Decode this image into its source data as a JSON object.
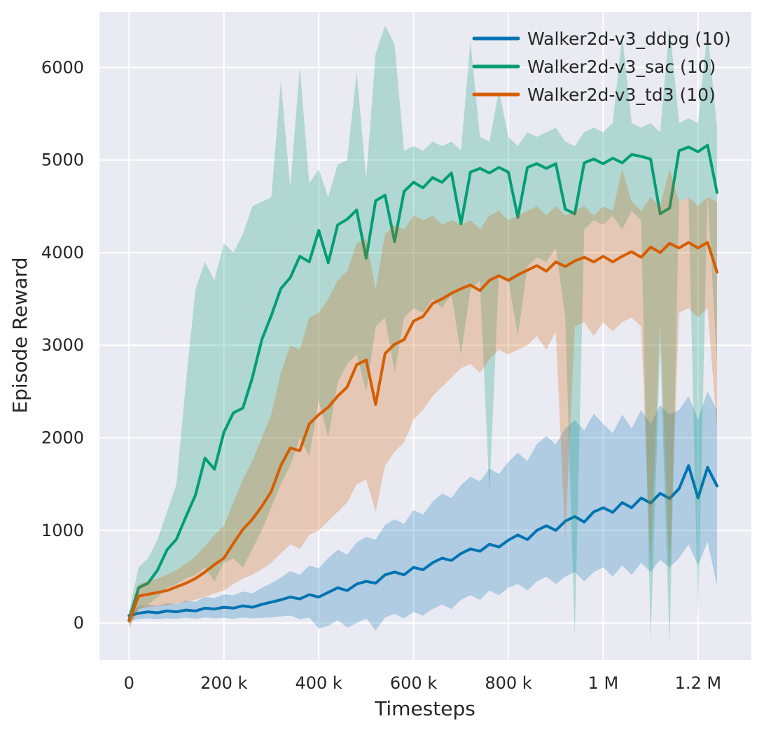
{
  "chart_data": {
    "type": "line",
    "title": "",
    "xlabel": "Timesteps",
    "ylabel": "Episode Reward",
    "xlim": [
      -62500,
      1312500
    ],
    "ylim": [
      -400,
      6600
    ],
    "grid": true,
    "legend_position": "upper right",
    "plot_background": "#eaeaf2",
    "grid_color": "#ffffff",
    "text_color": "#262626",
    "band_alpha": 0.25,
    "line_width": 4,
    "x_ticks": {
      "values": [
        0,
        200000,
        400000,
        600000,
        800000,
        1000000,
        1200000
      ],
      "labels": [
        "0",
        "200 k",
        "400 k",
        "600 k",
        "800 k",
        "1 M",
        "1.2 M"
      ]
    },
    "y_ticks": {
      "values": [
        0,
        1000,
        2000,
        3000,
        4000,
        5000,
        6000
      ],
      "labels": [
        "0",
        "1000",
        "2000",
        "3000",
        "4000",
        "5000",
        "6000"
      ]
    },
    "x": [
      0,
      20000,
      40000,
      60000,
      80000,
      100000,
      120000,
      140000,
      160000,
      180000,
      200000,
      220000,
      240000,
      260000,
      280000,
      300000,
      320000,
      340000,
      360000,
      380000,
      400000,
      420000,
      440000,
      460000,
      480000,
      500000,
      520000,
      540000,
      560000,
      580000,
      600000,
      620000,
      640000,
      660000,
      680000,
      700000,
      720000,
      740000,
      760000,
      780000,
      800000,
      820000,
      840000,
      860000,
      880000,
      900000,
      920000,
      940000,
      960000,
      980000,
      1000000,
      1020000,
      1040000,
      1060000,
      1080000,
      1100000,
      1120000,
      1140000,
      1160000,
      1180000,
      1200000,
      1220000,
      1240000
    ],
    "series": [
      {
        "name": "Walker2d-v3_ddpg (10)",
        "color": "#0173b2",
        "mean": [
          80,
          105,
          120,
          110,
          130,
          120,
          140,
          130,
          160,
          150,
          170,
          160,
          185,
          170,
          200,
          225,
          250,
          280,
          260,
          305,
          280,
          330,
          380,
          350,
          420,
          450,
          430,
          520,
          550,
          520,
          600,
          575,
          650,
          700,
          675,
          750,
          800,
          775,
          850,
          820,
          895,
          950,
          900,
          1000,
          1050,
          1000,
          1100,
          1150,
          1090,
          1200,
          1245,
          1195,
          1300,
          1245,
          1350,
          1295,
          1400,
          1345,
          1450,
          1700,
          1350,
          1680,
          1480
        ],
        "low": [
          20,
          40,
          50,
          40,
          50,
          45,
          55,
          45,
          60,
          50,
          55,
          45,
          60,
          50,
          55,
          60,
          70,
          80,
          40,
          60,
          -60,
          -30,
          30,
          -50,
          0,
          50,
          -80,
          60,
          100,
          50,
          120,
          80,
          150,
          200,
          150,
          250,
          300,
          250,
          350,
          300,
          380,
          420,
          350,
          450,
          500,
          420,
          500,
          550,
          450,
          550,
          600,
          500,
          620,
          520,
          650,
          550,
          680,
          600,
          700,
          850,
          620,
          880,
          400
        ],
        "high": [
          140,
          175,
          200,
          185,
          215,
          205,
          240,
          230,
          280,
          270,
          310,
          300,
          340,
          320,
          380,
          430,
          490,
          560,
          520,
          620,
          590,
          700,
          790,
          740,
          870,
          930,
          900,
          1060,
          1120,
          1070,
          1220,
          1170,
          1310,
          1400,
          1350,
          1490,
          1580,
          1530,
          1670,
          1610,
          1740,
          1840,
          1750,
          1930,
          2020,
          1930,
          2100,
          2190,
          2080,
          2260,
          2150,
          2050,
          2250,
          2100,
          2300,
          2150,
          2350,
          2250,
          2300,
          2450,
          2200,
          2500,
          2300
        ]
      },
      {
        "name": "Walker2d-v3_sac (10)",
        "color": "#029e73",
        "mean": [
          30,
          380,
          430,
          570,
          790,
          905,
          1150,
          1380,
          1780,
          1660,
          2060,
          2270,
          2320,
          2650,
          3060,
          3320,
          3610,
          3730,
          3960,
          3900,
          4240,
          3890,
          4300,
          4360,
          4460,
          3940,
          4560,
          4620,
          4120,
          4660,
          4760,
          4700,
          4810,
          4760,
          4860,
          4310,
          4870,
          4910,
          4860,
          4920,
          4870,
          4380,
          4920,
          4960,
          4910,
          4960,
          4470,
          4420,
          4970,
          5010,
          4960,
          5020,
          4970,
          5060,
          5040,
          5010,
          4420,
          4480,
          5100,
          5140,
          5090,
          5160,
          4650
        ],
        "low": [
          -40,
          150,
          200,
          280,
          380,
          420,
          480,
          520,
          600,
          450,
          650,
          700,
          600,
          800,
          1000,
          1250,
          1500,
          1700,
          2000,
          1800,
          2400,
          2000,
          2600,
          2800,
          2900,
          2500,
          3200,
          3300,
          2700,
          3300,
          3400,
          3350,
          3500,
          3400,
          3550,
          2900,
          3600,
          3700,
          1400,
          3750,
          3700,
          3100,
          3850,
          3950,
          3900,
          4050,
          3300,
          -150,
          4250,
          4350,
          4300,
          4400,
          4250,
          4450,
          4350,
          -200,
          3000,
          -250,
          4550,
          4600,
          50,
          4650,
          2800
        ],
        "high": [
          120,
          600,
          700,
          900,
          1200,
          1500,
          2600,
          3600,
          3900,
          3700,
          4100,
          4000,
          4200,
          4500,
          4550,
          4600,
          5850,
          4700,
          6000,
          4750,
          4900,
          4600,
          4950,
          5000,
          5950,
          4800,
          6150,
          6450,
          6250,
          5100,
          5150,
          5100,
          5200,
          5150,
          5200,
          5100,
          6280,
          5250,
          5200,
          5750,
          5250,
          5150,
          5300,
          5250,
          5300,
          5350,
          5200,
          5150,
          5300,
          5350,
          5300,
          5400,
          6350,
          5400,
          5350,
          5400,
          5300,
          6450,
          5400,
          5450,
          5400,
          6400,
          5350
        ]
      },
      {
        "name": "Walker2d-v3_td3 (10)",
        "color": "#d55e00",
        "mean": [
          20,
          290,
          310,
          330,
          350,
          390,
          430,
          480,
          550,
          630,
          700,
          860,
          1010,
          1120,
          1260,
          1420,
          1700,
          1890,
          1860,
          2150,
          2250,
          2330,
          2450,
          2550,
          2790,
          2840,
          2360,
          2910,
          3010,
          3060,
          3260,
          3310,
          3450,
          3500,
          3560,
          3610,
          3650,
          3590,
          3700,
          3750,
          3700,
          3760,
          3810,
          3860,
          3800,
          3900,
          3850,
          3910,
          3950,
          3900,
          3960,
          3900,
          3960,
          4010,
          3950,
          4060,
          4000,
          4100,
          4050,
          4110,
          4050,
          4110,
          3790
        ],
        "low": [
          -60,
          150,
          170,
          180,
          190,
          210,
          230,
          250,
          280,
          320,
          350,
          420,
          480,
          520,
          580,
          650,
          750,
          850,
          800,
          950,
          1000,
          1100,
          1200,
          1300,
          1500,
          1550,
          1200,
          1700,
          1850,
          1950,
          2200,
          2300,
          2450,
          2550,
          2650,
          2750,
          2800,
          2700,
          2850,
          2950,
          2900,
          2950,
          3000,
          3100,
          2950,
          3150,
          900,
          3200,
          3250,
          3100,
          3250,
          3150,
          3250,
          3300,
          3200,
          600,
          3250,
          500,
          3350,
          3400,
          3300,
          3400,
          2100
        ],
        "high": [
          100,
          420,
          450,
          480,
          520,
          570,
          640,
          720,
          830,
          950,
          1050,
          1300,
          1550,
          1750,
          2000,
          2250,
          2700,
          3000,
          2950,
          3300,
          3350,
          3500,
          3700,
          3800,
          4100,
          4150,
          3600,
          4200,
          4300,
          4250,
          4400,
          4350,
          4400,
          4300,
          4350,
          4300,
          4350,
          4250,
          4400,
          4450,
          4350,
          4400,
          4450,
          4500,
          4400,
          4500,
          4400,
          4450,
          4500,
          4400,
          4500,
          4450,
          4900,
          4550,
          4450,
          4600,
          4500,
          4900,
          4550,
          4600,
          4500,
          4600,
          4550
        ]
      }
    ]
  }
}
